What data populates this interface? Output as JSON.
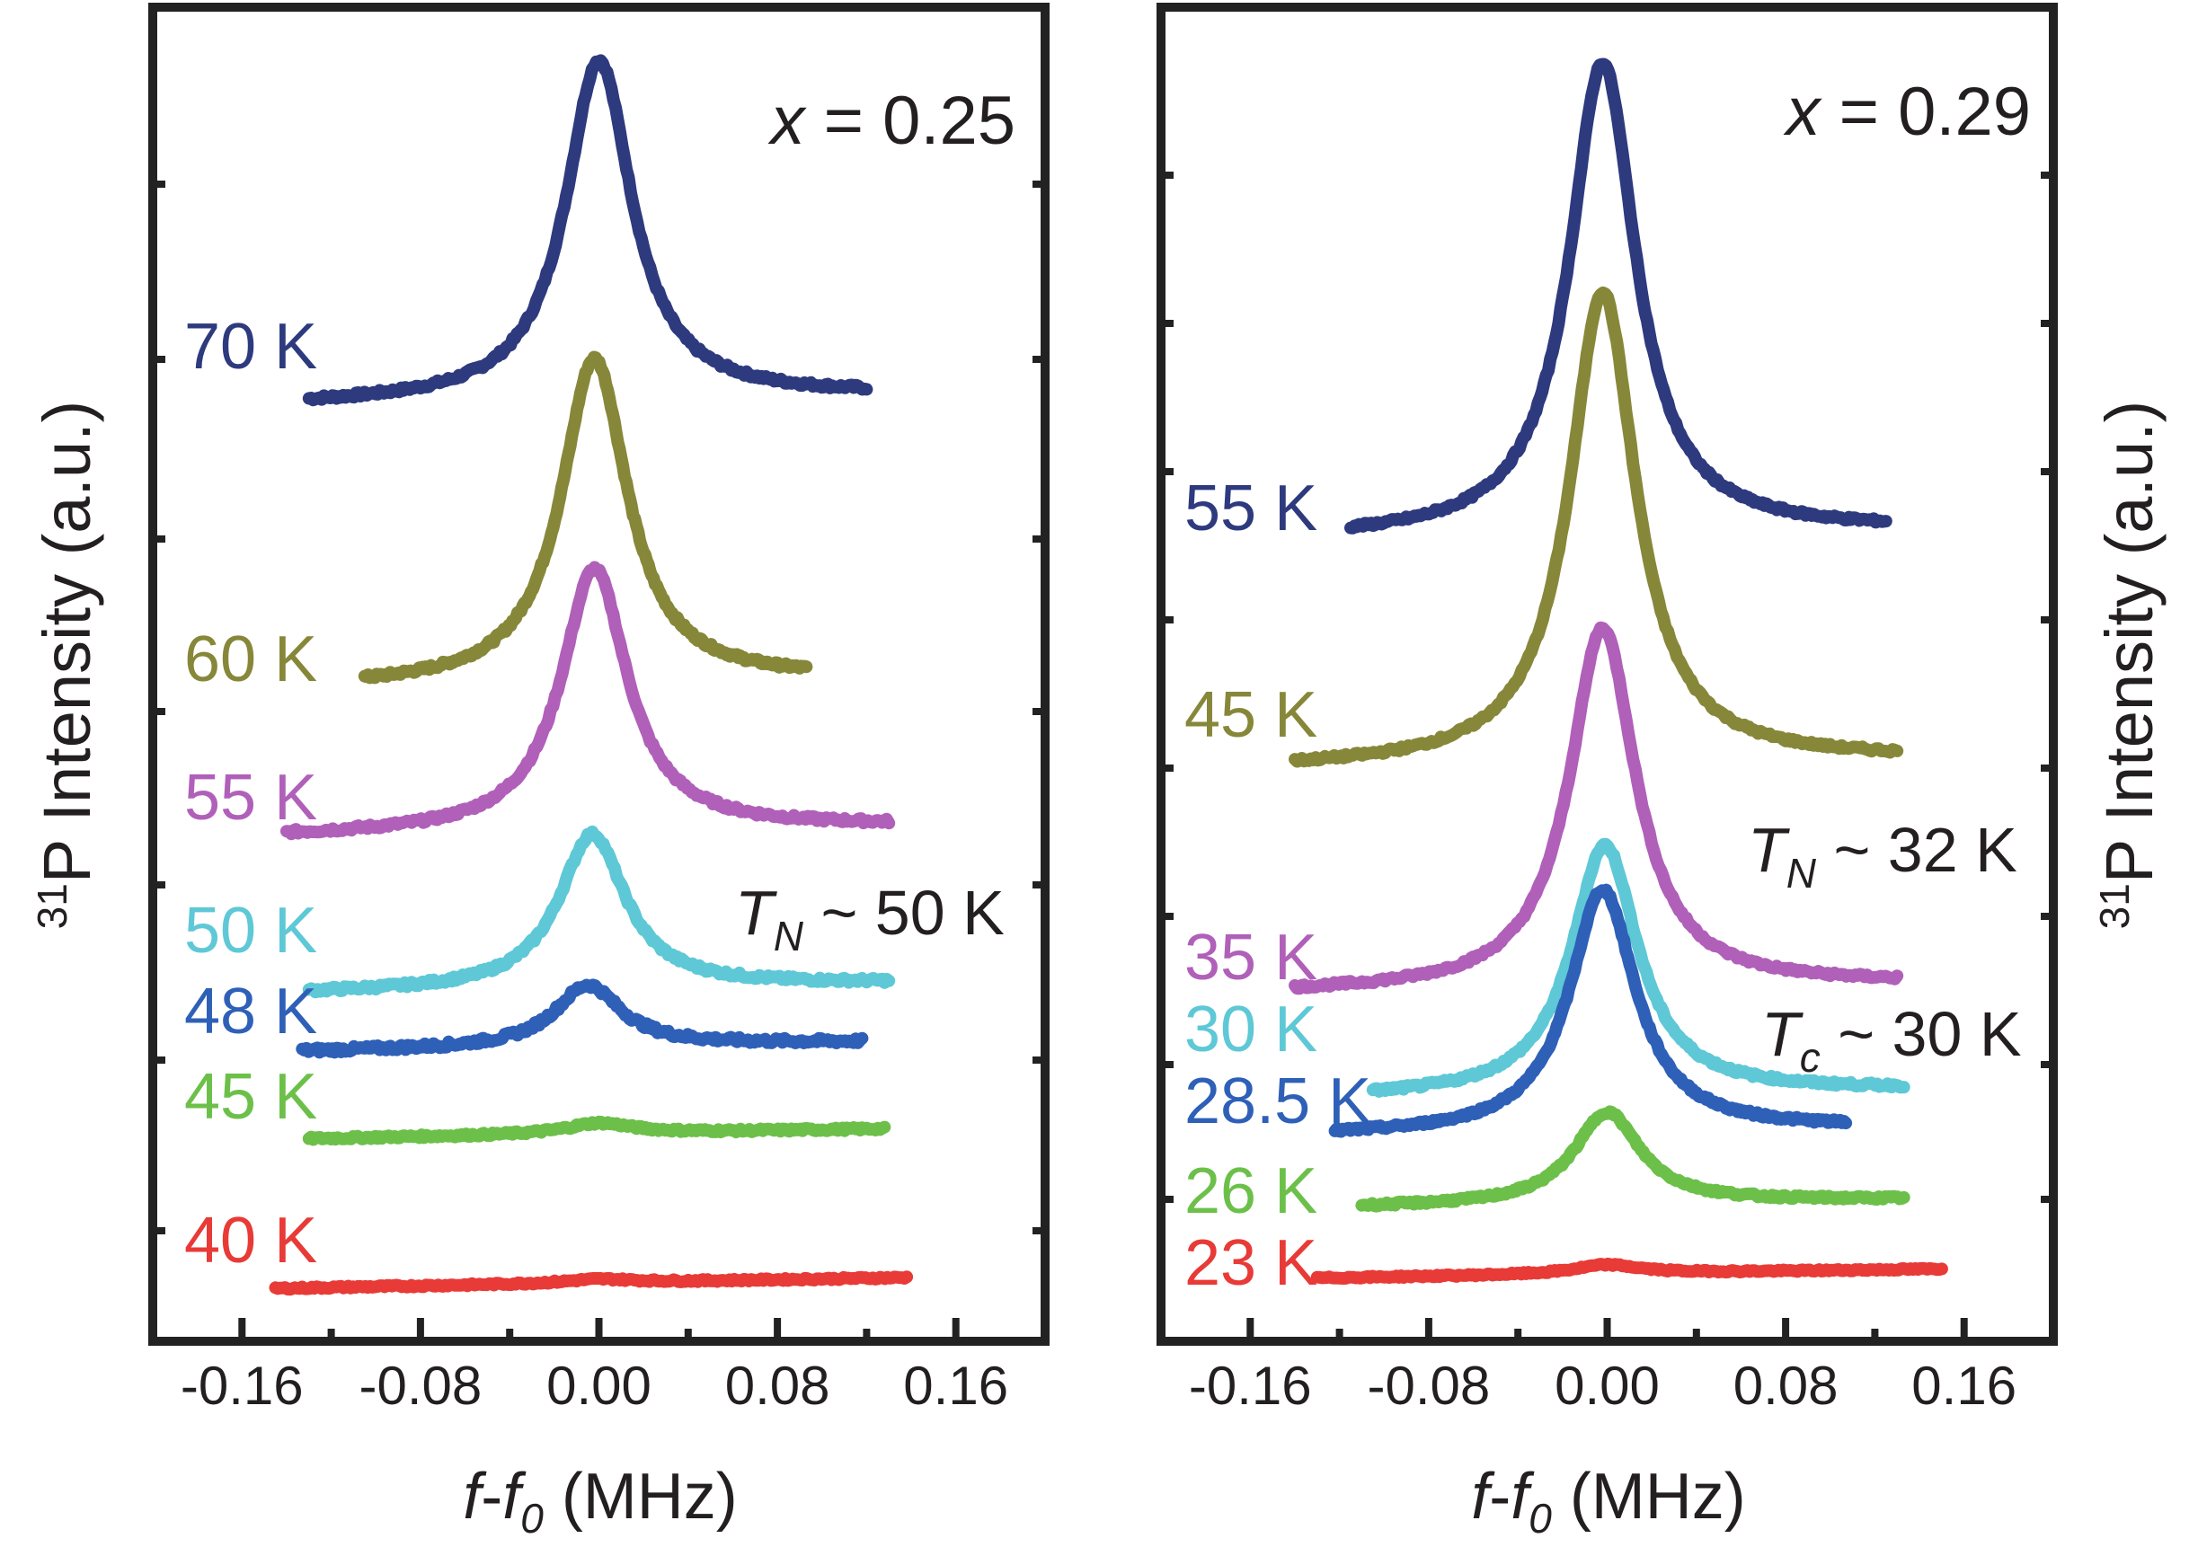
{
  "chart_data": [
    {
      "type": "line",
      "panel_label": "x = 0.25",
      "panel_label_var": "x",
      "panel_label_rest": " = 0.25",
      "xlabel_f": "f",
      "xlabel_dash": "-",
      "xlabel_f0": "f",
      "xlabel_sub": "0",
      "xlabel_unit": " (MHz)",
      "ylabel_sup": "31",
      "ylabel_text": "P Intensity (a.u.)",
      "ylabel_side": "left",
      "xlim": [
        -0.2,
        0.2
      ],
      "xticks": [
        "-0.16",
        "-0.08",
        "0.00",
        "0.08",
        "0.16"
      ],
      "transition_label": {
        "T": "T",
        "sub": "N",
        "rest": " ~ 50 K"
      },
      "series": [
        {
          "name": "70 K",
          "color": "#2e3a7e",
          "x_range": [
            -0.13,
            0.12
          ],
          "baseline": 0.0,
          "peak_height": 0.44,
          "peak_center": 0.0,
          "noise": 0.006
        },
        {
          "name": "60 K",
          "color": "#87873a",
          "x_range": [
            -0.105,
            0.093
          ],
          "baseline": 0.0,
          "peak_height": 0.42,
          "peak_center": -0.002,
          "noise": 0.006
        },
        {
          "name": "55 K",
          "color": "#b060b9",
          "x_range": [
            -0.14,
            0.13
          ],
          "baseline": 0.0,
          "peak_height": 0.34,
          "peak_center": -0.002,
          "noise": 0.006
        },
        {
          "name": "50 K",
          "color": "#5ec8d6",
          "x_range": [
            -0.13,
            0.13
          ],
          "baseline": 0.0,
          "peak_height": 0.2,
          "peak_center": -0.003,
          "noise": 0.006
        },
        {
          "name": "48 K",
          "color": "#2e60b8",
          "x_range": [
            -0.133,
            0.118
          ],
          "baseline": 0.0,
          "peak_height": 0.08,
          "peak_center": -0.005,
          "noise": 0.007
        },
        {
          "name": "45 K",
          "color": "#6cc04a",
          "x_range": [
            -0.13,
            0.128
          ],
          "baseline": 0.0,
          "peak_height": 0.014,
          "peak_center": 0.0,
          "noise": 0.004
        },
        {
          "name": "40 K",
          "color": "#e83a36",
          "x_range": [
            -0.145,
            0.138
          ],
          "baseline": 0.0,
          "peak_height": 0.005,
          "peak_center": 0.0,
          "noise": 0.003
        }
      ]
    },
    {
      "type": "line",
      "panel_label": "x = 0.29",
      "panel_label_var": "x",
      "panel_label_rest": " = 0.29",
      "xlabel_f": "f",
      "xlabel_dash": "-",
      "xlabel_f0": "f",
      "xlabel_sub": "0",
      "xlabel_unit": " (MHz)",
      "ylabel_sup": "31",
      "ylabel_text": "P Intensity (a.u.)",
      "ylabel_side": "right",
      "xlim": [
        -0.2,
        0.2
      ],
      "xticks": [
        "-0.16",
        "-0.08",
        "0.00",
        "0.08",
        "0.16"
      ],
      "transition_label": {
        "T": "T",
        "sub": "N",
        "rest": " ~ 32 K"
      },
      "transition_label_2": {
        "T": "T",
        "sub": "c",
        "rest": " ~ 30 K"
      },
      "series": [
        {
          "name": "55 K",
          "color": "#2e3a7e",
          "x_range": [
            -0.115,
            0.125
          ],
          "baseline": 0.0,
          "peak_height": 0.72,
          "peak_center": -0.002,
          "noise": 0.006
        },
        {
          "name": "45 K",
          "color": "#87873a",
          "x_range": [
            -0.14,
            0.13
          ],
          "baseline": 0.0,
          "peak_height": 0.72,
          "peak_center": -0.002,
          "noise": 0.006
        },
        {
          "name": "35 K",
          "color": "#b060b9",
          "x_range": [
            -0.14,
            0.13
          ],
          "baseline": 0.0,
          "peak_height": 0.55,
          "peak_center": -0.002,
          "noise": 0.006
        },
        {
          "name": "30 K",
          "color": "#5ec8d6",
          "x_range": [
            -0.105,
            0.133
          ],
          "baseline": 0.0,
          "peak_height": 0.38,
          "peak_center": -0.001,
          "noise": 0.006
        },
        {
          "name": "28.5 K",
          "color": "#2e60b8",
          "x_range": [
            -0.122,
            0.107
          ],
          "baseline": 0.0,
          "peak_height": 0.37,
          "peak_center": -0.002,
          "noise": 0.006
        },
        {
          "name": "26 K",
          "color": "#6cc04a",
          "x_range": [
            -0.11,
            0.133
          ],
          "baseline": 0.0,
          "peak_height": 0.14,
          "peak_center": 0.0,
          "noise": 0.005
        },
        {
          "name": "23 K",
          "color": "#e83a36",
          "x_range": [
            -0.13,
            0.15
          ],
          "baseline": 0.0,
          "peak_height": 0.014,
          "peak_center": 0.0,
          "noise": 0.003
        }
      ]
    }
  ]
}
